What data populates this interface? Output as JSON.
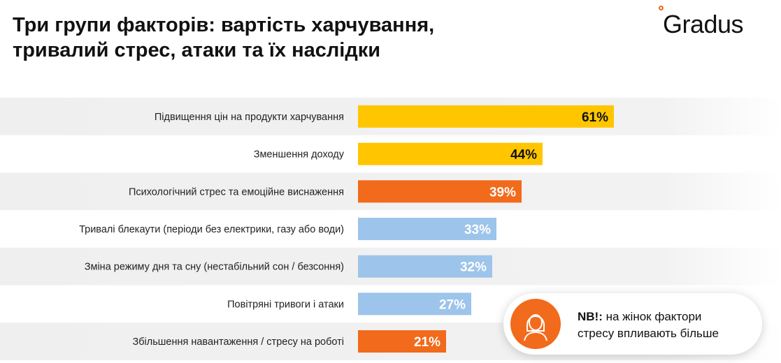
{
  "title_line1": "Три групи факторів: вартість харчування,",
  "title_line2": "тривалий стрес, атаки та їх наслідки",
  "logo": "Gradus",
  "callout": {
    "bold": "NB!:",
    "line1": " на жінок фактори",
    "line2": "стресу впливають більше",
    "icon": "woman-icon"
  },
  "colors": {
    "yellow": "#FFC600",
    "orange": "#F26A1B",
    "blue": "#9DC4EA"
  },
  "chart_data": {
    "type": "bar",
    "orientation": "horizontal",
    "categories": [
      "Підвищення цін на продукти харчування",
      "Зменшення доходу",
      "Психологічний стрес та емоційне виснаження",
      "Тривалі блекаути (періоди без електрики, газу або води)",
      "Зміна режиму дня та сну (нестабільний сон / безсоння)",
      "Повітряні тривоги і атаки",
      "Збільшення навантаження / стресу на роботі"
    ],
    "values": [
      61,
      44,
      39,
      33,
      32,
      27,
      21
    ],
    "value_labels": [
      "61%",
      "44%",
      "39%",
      "33%",
      "32%",
      "27%",
      "21%"
    ],
    "groups": [
      "yellow",
      "yellow",
      "orange",
      "blue",
      "blue",
      "blue",
      "orange"
    ],
    "xlim": [
      0,
      100
    ]
  }
}
